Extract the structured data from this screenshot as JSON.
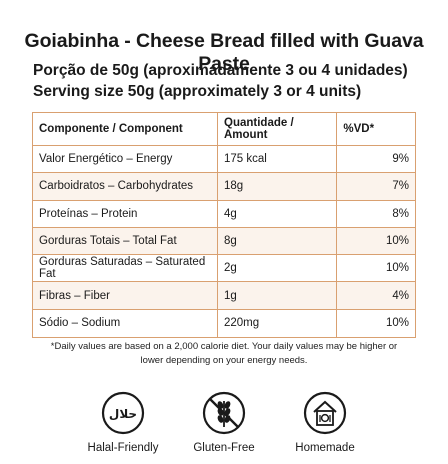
{
  "header": {
    "title": "Goiabinha - Cheese Bread filled with Guava Paste",
    "portion_pt": "Porção de 50g (aproximadamente 3 ou 4 unidades)",
    "portion_en": "Serving size 50g (approximately 3 or 4 units)"
  },
  "table": {
    "headers": [
      "Componente / Component",
      "Quantidade / Amount",
      "%VD*"
    ],
    "rows": [
      {
        "component": "Valor Energético – Energy",
        "amount": "175 kcal",
        "dv": "9%"
      },
      {
        "component": "Carboidratos – Carbohydrates",
        "amount": "18g",
        "dv": "7%"
      },
      {
        "component": "Proteínas – Protein",
        "amount": "4g",
        "dv": "8%"
      },
      {
        "component": "Gorduras Totais – Total Fat",
        "amount": "8g",
        "dv": "10%"
      },
      {
        "component": "Gorduras Saturadas – Saturated Fat",
        "amount": "2g",
        "dv": "10%"
      },
      {
        "component": "Fibras – Fiber",
        "amount": "1g",
        "dv": "4%"
      },
      {
        "component": "Sódio – Sodium",
        "amount": "220mg",
        "dv": "10%"
      }
    ]
  },
  "footnote": {
    "line1": "*Daily values are based on a 2,000 calorie diet. Your daily values may be higher or",
    "line2": "lower depending on your energy needs."
  },
  "badges": [
    {
      "icon": "halal-icon",
      "label": "Halal-Friendly",
      "symbol_text": "حلال"
    },
    {
      "icon": "gluten-free-icon",
      "label": "Gluten-Free"
    },
    {
      "icon": "homemade-icon",
      "label": "Homemade"
    }
  ],
  "colors": {
    "border": "#d9a070",
    "row_alt": "#fbf3ec",
    "text": "#1a1a1a"
  }
}
